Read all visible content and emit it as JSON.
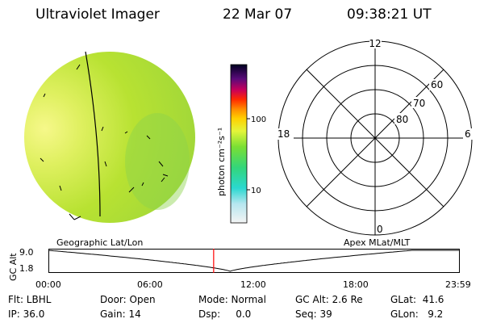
{
  "header": {
    "instrument": "Ultraviolet Imager",
    "date": "22 Mar 07",
    "time": "09:38:21 UT"
  },
  "colorbar": {
    "unit_label": "photon cm⁻²s⁻¹",
    "tick_100": "100",
    "tick_10": "10"
  },
  "polar_plot": {
    "mlt_top": "12",
    "mlt_left": "18",
    "mlt_right": "6",
    "mlt_bottom": "0",
    "lat_60": "60",
    "lat_70": "70",
    "lat_80": "80"
  },
  "timeline": {
    "left_label": "Geographic Lat/Lon",
    "right_label": "Apex MLat/MLT",
    "y_axis_label": "GC Alt",
    "y_max": "9.0",
    "y_min": "1.8",
    "x_ticks": [
      "00:00",
      "06:00",
      "12:00",
      "18:00",
      "23:59"
    ],
    "current_time_hours": 9.64
  },
  "info": {
    "flt": "Flt: LBHL",
    "ip": "IP: 36.0",
    "door": "Door: Open",
    "gain": "Gain: 14",
    "mode": "Mode: Normal",
    "dsp": "Dsp:     0.0",
    "gc_alt": "GC Alt: 2.6 Re",
    "seq": "Seq: 39",
    "glat": "GLat:  41.6",
    "glon": "GLon:   9.2"
  },
  "colors": {
    "disk_main": "#b4e030",
    "disk_bright": "#eef56a",
    "marker": "#ff0000"
  }
}
